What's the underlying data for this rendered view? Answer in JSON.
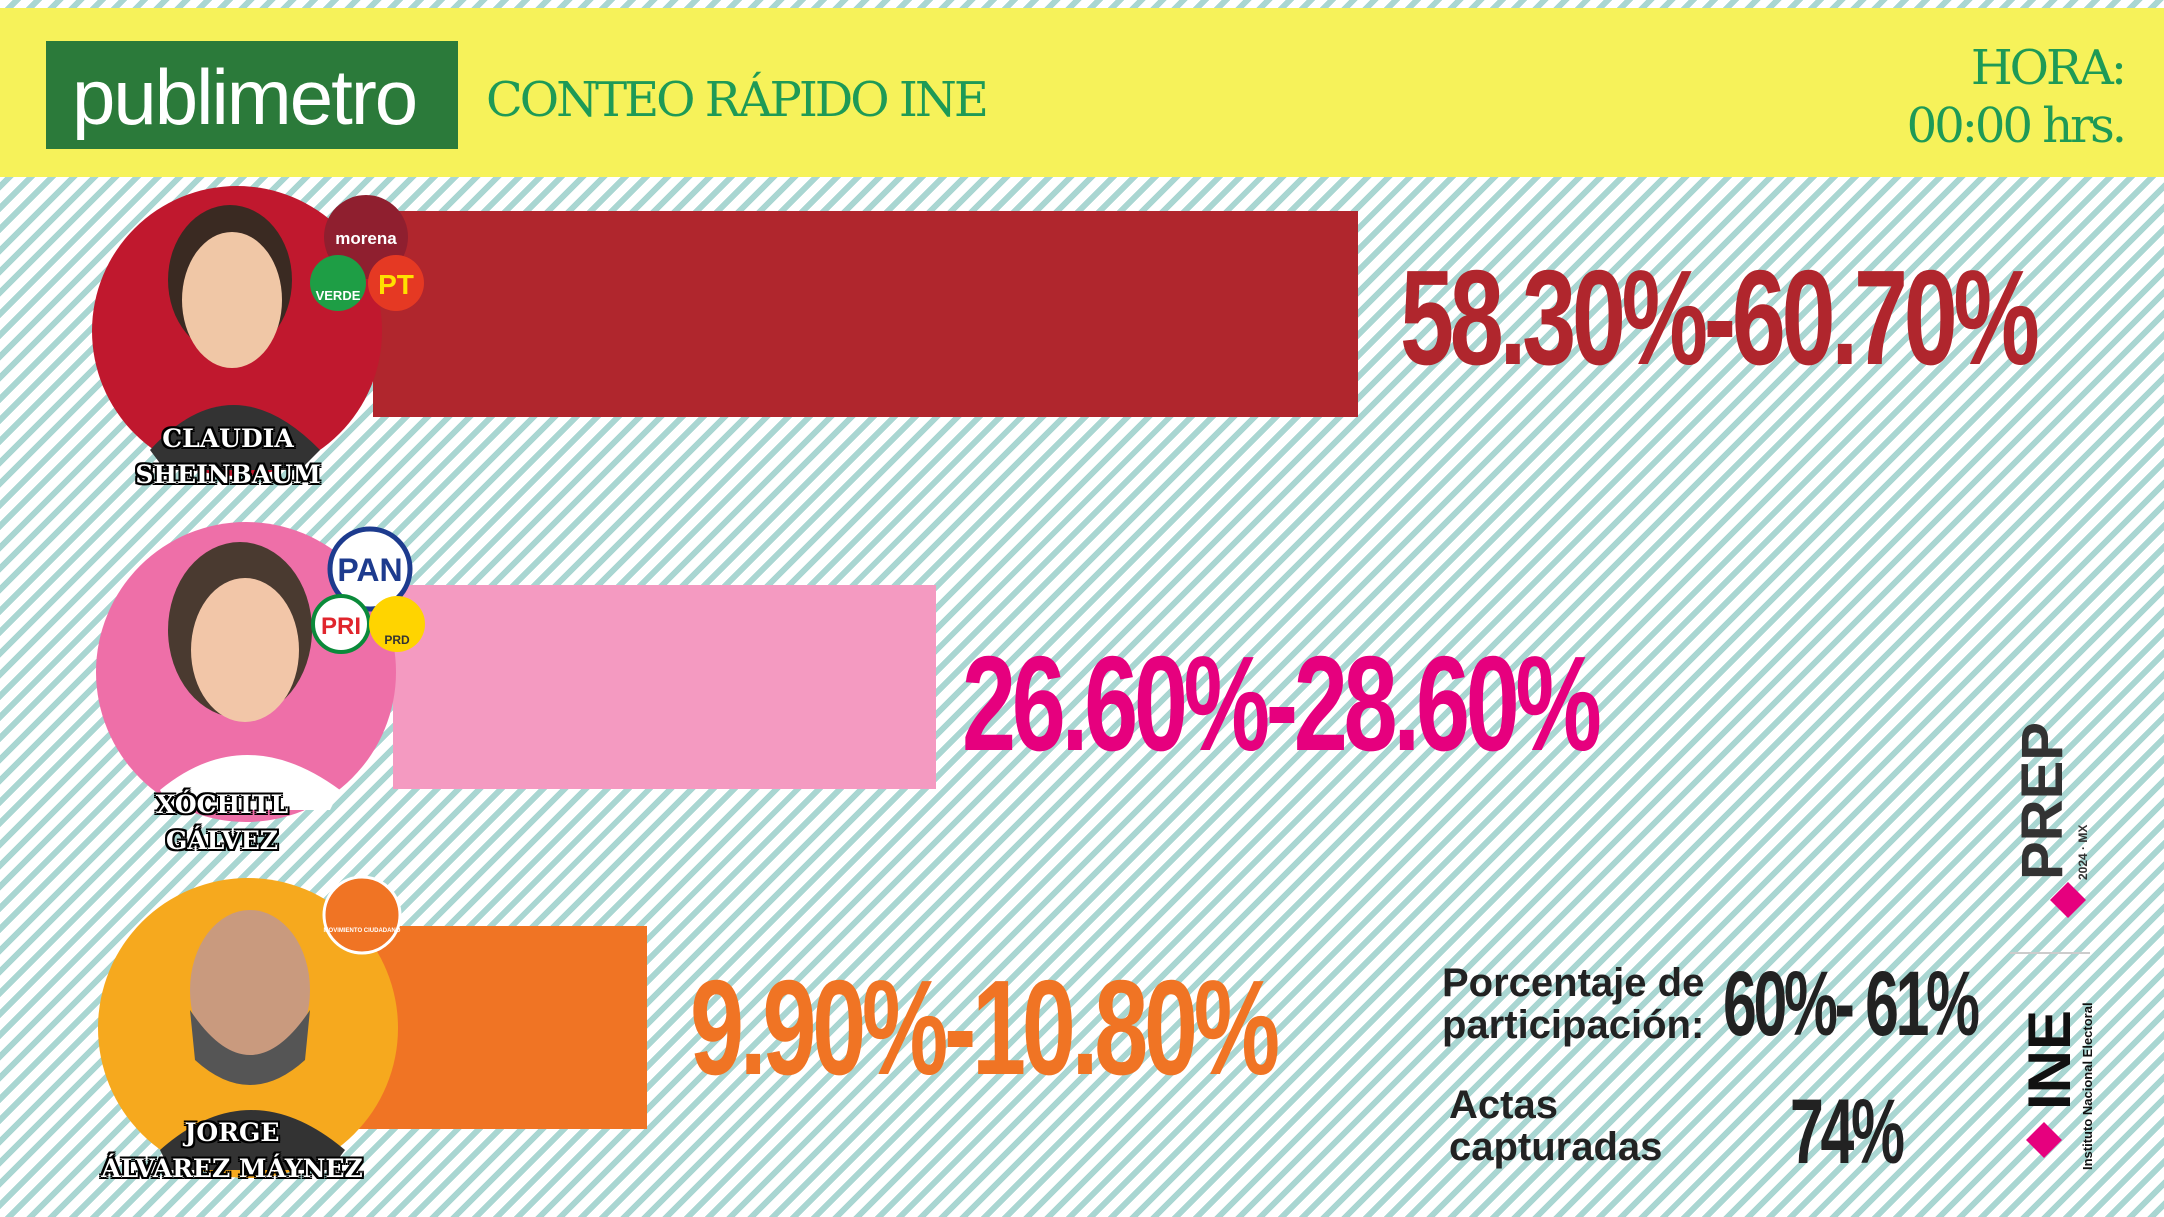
{
  "header": {
    "brand": "publimetro",
    "title": "CONTEO RÁPIDO INE",
    "time_label": "HORA:",
    "time": "00:00 hrs."
  },
  "candidates": [
    {
      "name_lines": [
        "CLAUDIA",
        "SHEINBAUM"
      ],
      "parties": [
        "morena",
        "VERDE",
        "PT"
      ],
      "range": "58.30%-60.70%"
    },
    {
      "name_lines": [
        "XÓCHITL",
        "GÁLVEZ"
      ],
      "parties": [
        "PAN",
        "PRI",
        "PRD"
      ],
      "range": "26.60%-28.60%"
    },
    {
      "name_lines": [
        "JORGE",
        "ÁLVAREZ MÁYNEZ"
      ],
      "parties": [
        "MOVIMIENTO CIUDADANO"
      ],
      "range": "9.90%-10.80%"
    }
  ],
  "participation": {
    "label_lines": [
      "Porcentaje de",
      "participación:"
    ],
    "value": "60%- 61%"
  },
  "actas": {
    "label_lines": [
      "Actas",
      "capturadas"
    ],
    "value": "74%"
  },
  "logos": {
    "prep": "PREP",
    "prep_sub": "2024 · MX",
    "ine": "INE",
    "ine_sub": "Instituto Nacional Electoral"
  }
}
